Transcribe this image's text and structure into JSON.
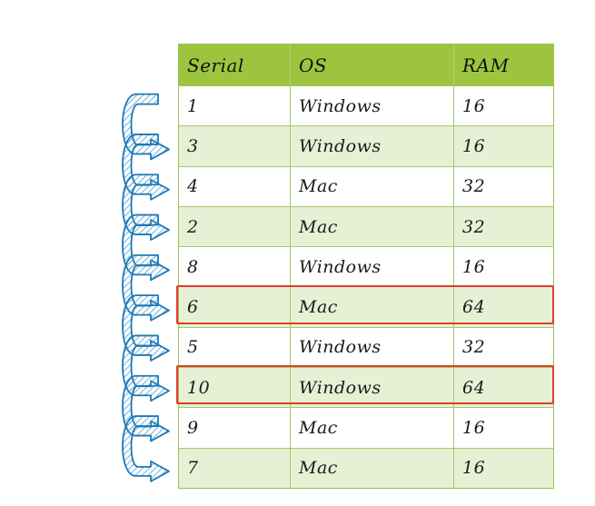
{
  "table": {
    "headers": [
      "Serial",
      "OS",
      "RAM"
    ],
    "rows": [
      {
        "serial": "1",
        "os": "Windows",
        "ram": "16",
        "highlighted": false
      },
      {
        "serial": "3",
        "os": "Windows",
        "ram": "16",
        "highlighted": false
      },
      {
        "serial": "4",
        "os": "Mac",
        "ram": "32",
        "highlighted": false
      },
      {
        "serial": "2",
        "os": "Mac",
        "ram": "32",
        "highlighted": false
      },
      {
        "serial": "8",
        "os": "Windows",
        "ram": "16",
        "highlighted": false
      },
      {
        "serial": "6",
        "os": "Mac",
        "ram": "64",
        "highlighted": true
      },
      {
        "serial": "5",
        "os": "Windows",
        "ram": "32",
        "highlighted": false
      },
      {
        "serial": "10",
        "os": "Windows",
        "ram": "64",
        "highlighted": true
      },
      {
        "serial": "9",
        "os": "Mac",
        "ram": "16",
        "highlighted": false
      },
      {
        "serial": "7",
        "os": "Mac",
        "ram": "16",
        "highlighted": false
      }
    ]
  },
  "colors": {
    "header_bg": "#9dc43e",
    "row_alt_bg": "#e6f0d5",
    "highlight_border": "#e03c31",
    "arrow_stroke": "#1f78b4",
    "arrow_hatch": "#4a9fd8"
  },
  "decorations": {
    "arrow_icon": "u-turn-arrow-icon",
    "arrow_count": 9
  }
}
